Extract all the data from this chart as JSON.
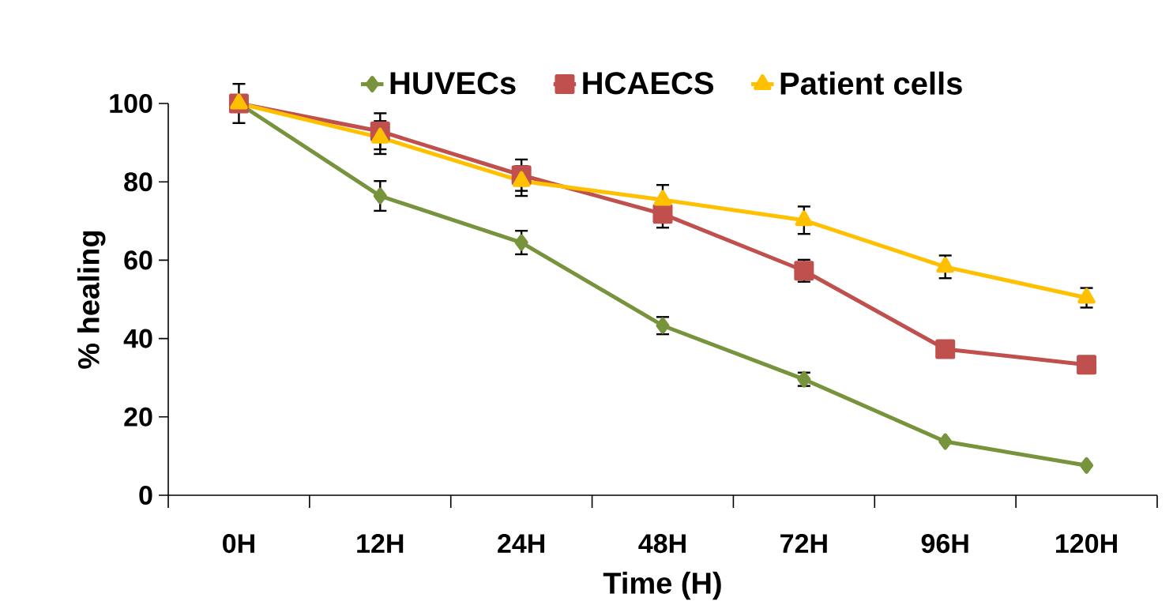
{
  "chart_data": {
    "type": "line",
    "xlabel": "Time (H)",
    "ylabel": "% healing",
    "categories": [
      "0H",
      "12H",
      "24H",
      "48H",
      "72H",
      "96H",
      "120H"
    ],
    "series": [
      {
        "name": "HUVECs",
        "color": "#77933c",
        "marker": "diamond",
        "values": [
          100,
          76.4,
          64.5,
          43.3,
          29.6,
          13.7,
          7.6
        ],
        "errors": [
          5,
          3.8,
          3,
          2.2,
          1.7,
          null,
          null
        ]
      },
      {
        "name": "HCAECS",
        "color": "#c0504d",
        "marker": "square",
        "values": [
          100,
          92.9,
          81.7,
          71.8,
          57.3,
          37.3,
          33.3
        ],
        "errors": [
          null,
          4.6,
          4,
          3.5,
          2.8,
          null,
          null
        ]
      },
      {
        "name": "Patient cells",
        "color": "#ffc000",
        "marker": "triangle",
        "values": [
          100,
          91.3,
          80.2,
          75.4,
          70.2,
          58.3,
          50.4
        ],
        "errors": [
          null,
          4.2,
          3.8,
          3.8,
          3.5,
          2.9,
          2.5
        ]
      }
    ],
    "ylim": [
      0,
      100
    ],
    "yticks": [
      0,
      20,
      40,
      60,
      80,
      100
    ],
    "legend": "top",
    "grid": false
  }
}
